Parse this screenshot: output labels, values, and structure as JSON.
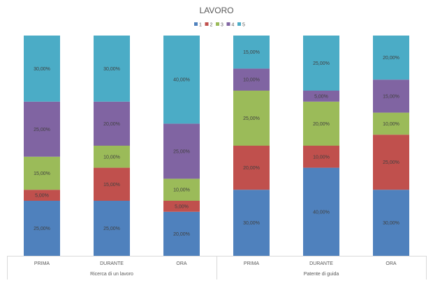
{
  "chart_data": {
    "type": "bar",
    "stacked": "percent",
    "title": "LAVORO",
    "legend_position": "top",
    "grid": false,
    "ylim": [
      0,
      100
    ],
    "groups": [
      {
        "label": "Ricerca di un lavoro",
        "categories": [
          "PRIMA",
          "DURANTE",
          "ORA"
        ]
      },
      {
        "label": "Patente di guida",
        "categories": [
          "PRIMA",
          "DURANTE",
          "ORA"
        ]
      }
    ],
    "categories": [
      "PRIMA",
      "DURANTE",
      "ORA",
      "PRIMA",
      "DURANTE",
      "ORA"
    ],
    "series": [
      {
        "name": "1",
        "color": "#4f81bd",
        "values": [
          25,
          25,
          20,
          30,
          40,
          30
        ],
        "labels": [
          "25,00%",
          "25,00%",
          "20,00%",
          "30,00%",
          "40,00%",
          "30,00%"
        ]
      },
      {
        "name": "2",
        "color": "#c0504d",
        "values": [
          5,
          15,
          5,
          20,
          10,
          25
        ],
        "labels": [
          "5,00%",
          "15,00%",
          "5,00%",
          "20,00%",
          "10,00%",
          "25,00%"
        ]
      },
      {
        "name": "3",
        "color": "#9bbb59",
        "values": [
          15,
          10,
          10,
          25,
          20,
          10
        ],
        "labels": [
          "15,00%",
          "10,00%",
          "10,00%",
          "25,00%",
          "20,00%",
          "10,00%"
        ]
      },
      {
        "name": "4",
        "color": "#8064a2",
        "values": [
          25,
          20,
          25,
          10,
          5,
          15
        ],
        "labels": [
          "25,00%",
          "20,00%",
          "25,00%",
          "10,00%",
          "5,00%",
          "15,00%"
        ]
      },
      {
        "name": "5",
        "color": "#4bacc6",
        "values": [
          30,
          30,
          40,
          15,
          25,
          20
        ],
        "labels": [
          "30,00%",
          "30,00%",
          "40,00%",
          "15,00%",
          "25,00%",
          "20,00%"
        ]
      }
    ]
  }
}
